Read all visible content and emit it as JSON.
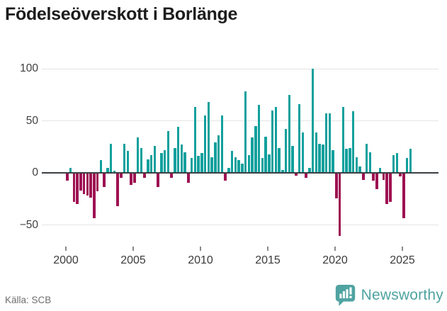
{
  "title": "Födelseöverskott i Borlänge",
  "source": "Källa: SCB",
  "logo": {
    "brand": "Newsworthy"
  },
  "colors": {
    "positive": "#11a09d",
    "negative": "#9e1152",
    "axis": "#3b4043",
    "grid": "#e4e4e4",
    "logo_teal": "#4fa3a1"
  },
  "chart_data": {
    "type": "bar",
    "title": "Födelseöverskott i Borlänge",
    "xlabel": "",
    "ylabel": "",
    "grid": "horizontal",
    "ylim": [
      -65,
      105
    ],
    "y_ticks": [
      100,
      50,
      0,
      -50
    ],
    "y_tick_labels": [
      "100",
      "50",
      "0",
      "−50"
    ],
    "x_tick_labels": [
      "2000",
      "2005",
      "2010",
      "2015",
      "2020",
      "2025"
    ],
    "start_year": 2000,
    "start_quarter": 1,
    "period": "quarterly",
    "values": [
      -7,
      5,
      -27,
      -29,
      -16,
      -20,
      -21,
      -23,
      -43,
      -17,
      12,
      -13,
      5,
      28,
      2,
      -31,
      -4,
      28,
      21,
      -11,
      -9,
      34,
      24,
      -4,
      13,
      17,
      26,
      -13,
      19,
      22,
      40,
      -4,
      24,
      44,
      27,
      20,
      -9,
      14,
      63,
      16,
      19,
      55,
      68,
      15,
      29,
      36,
      55,
      -7,
      5,
      21,
      15,
      12,
      9,
      78,
      17,
      34,
      45,
      65,
      14,
      35,
      18,
      60,
      63,
      24,
      3,
      42,
      75,
      26,
      -2,
      66,
      39,
      -4,
      5,
      100,
      39,
      28,
      27,
      57,
      57,
      22,
      -24,
      -60,
      63,
      23,
      24,
      59,
      15,
      6,
      -6,
      28,
      20,
      -7,
      -15,
      5,
      -6,
      -29,
      -27,
      17,
      19,
      -3,
      -43,
      14,
      23
    ]
  }
}
